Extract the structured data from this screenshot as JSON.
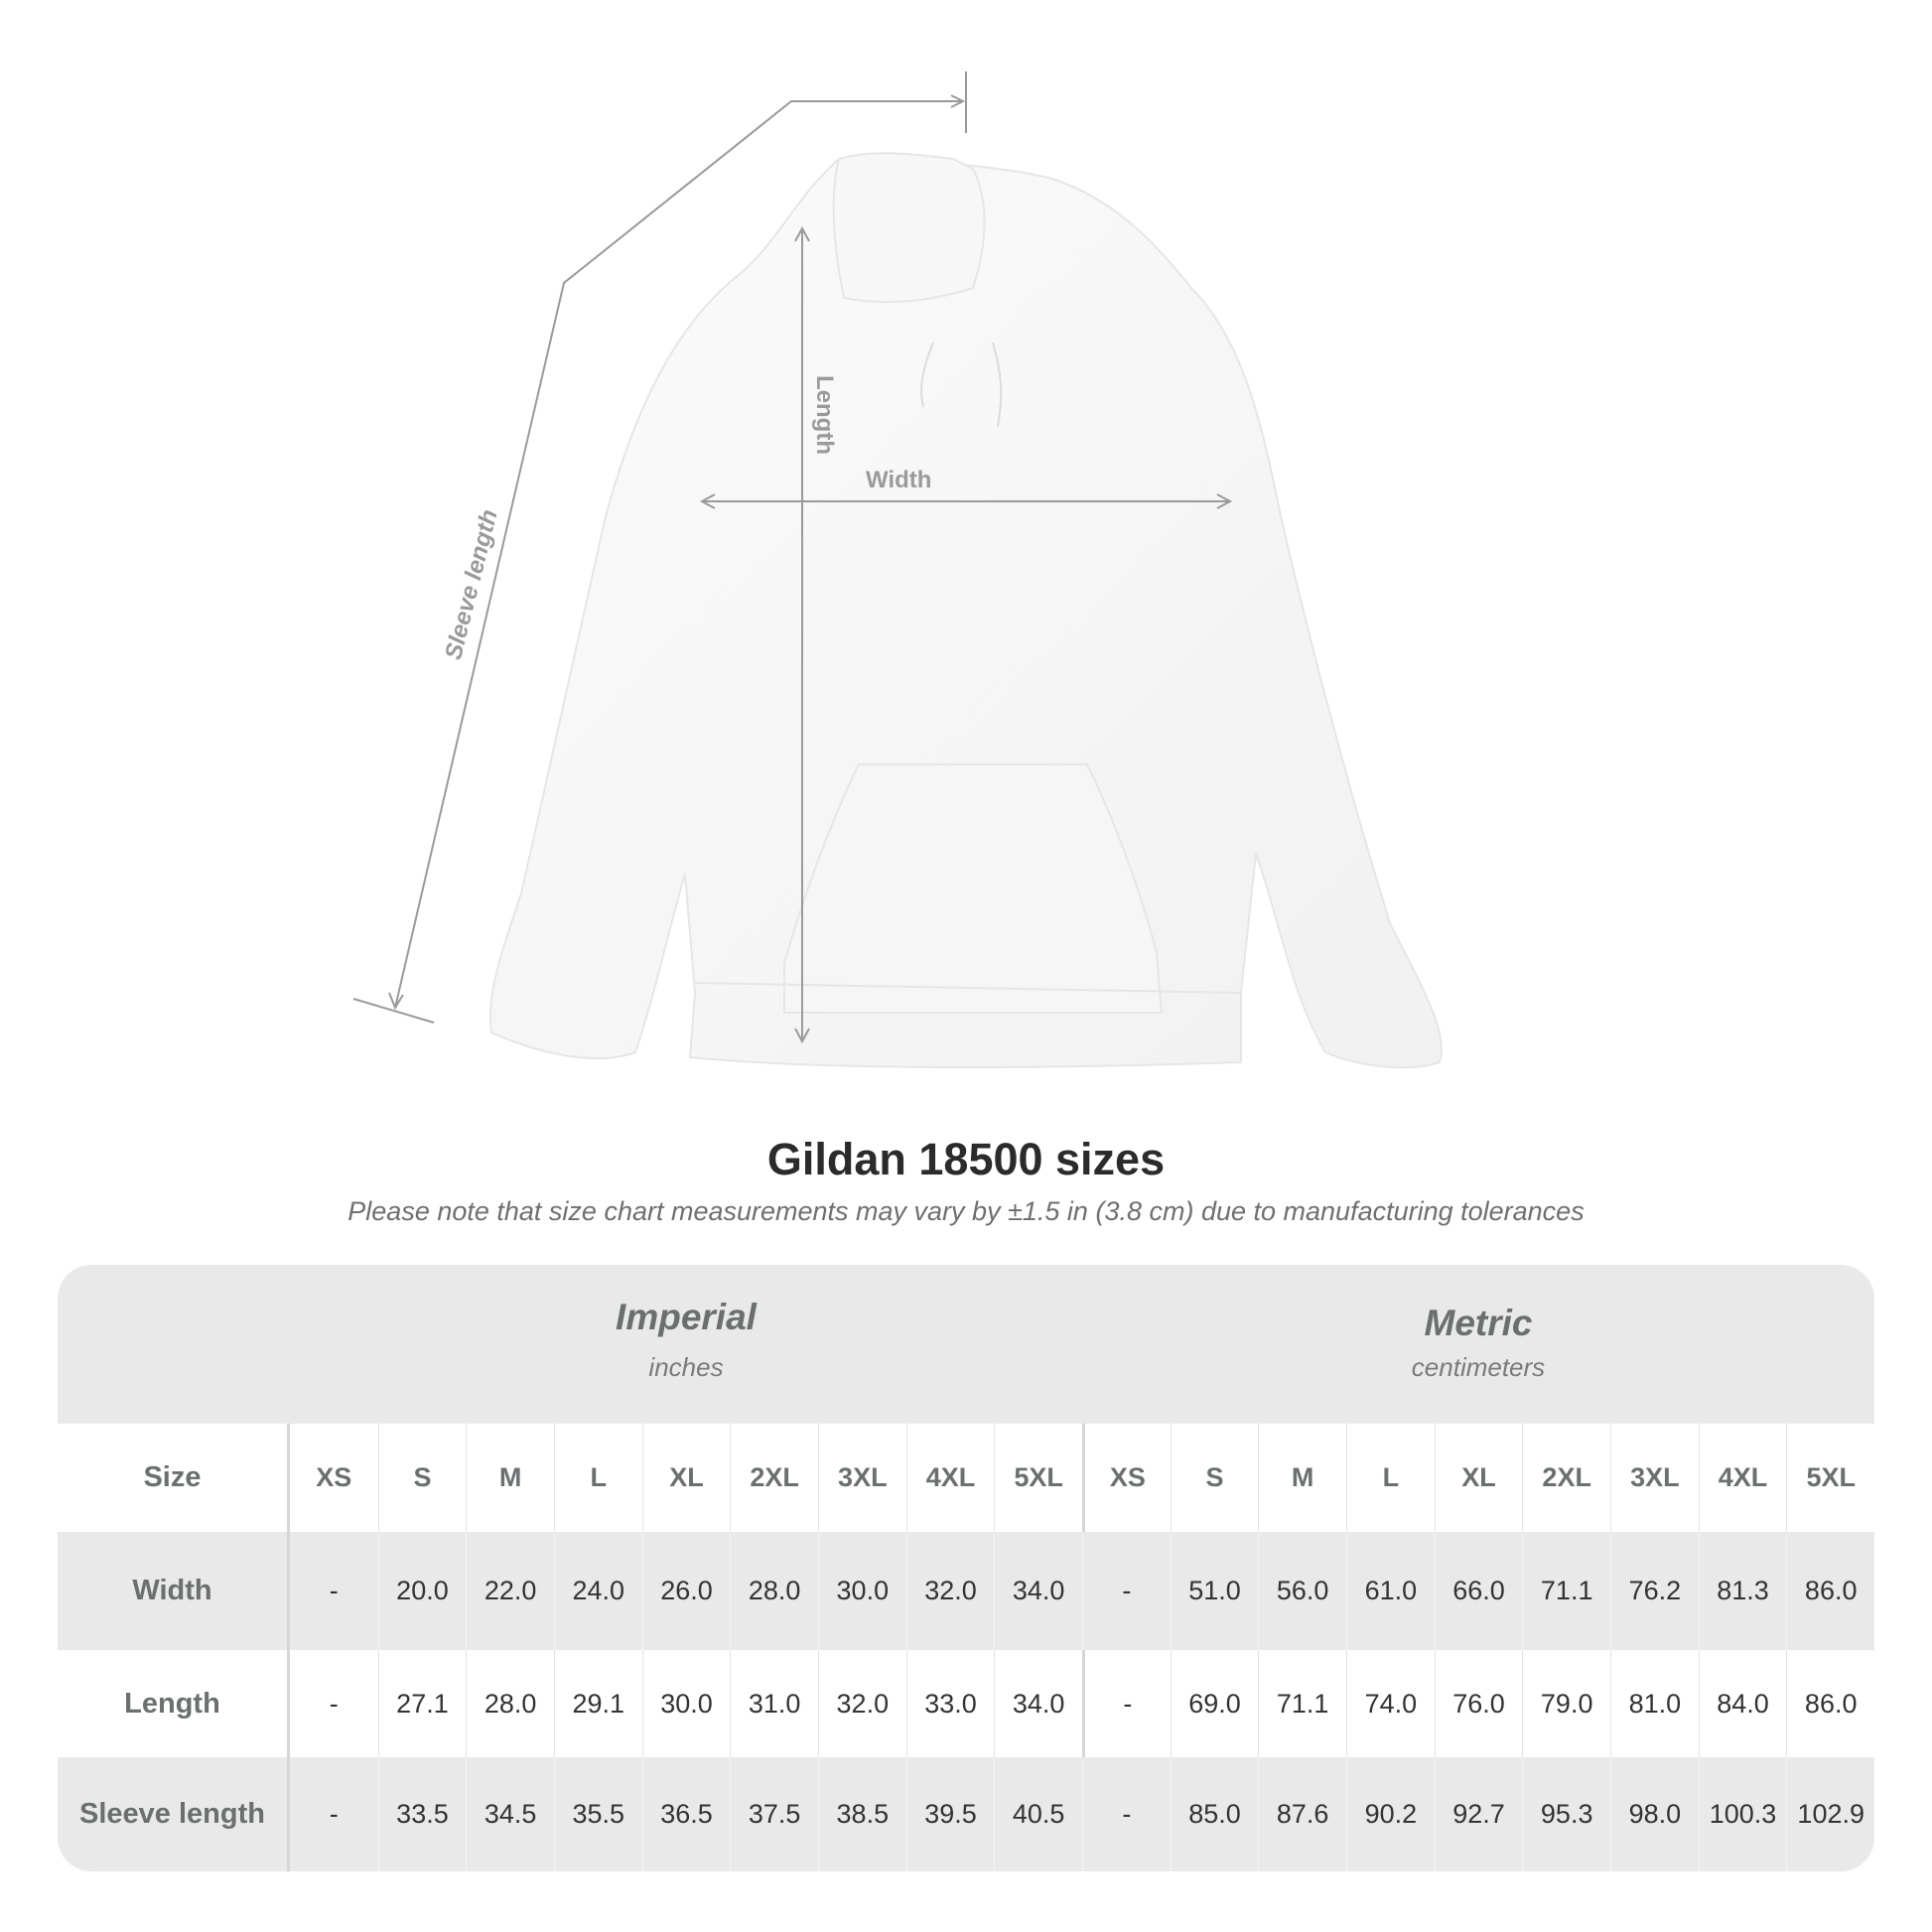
{
  "diagram": {
    "labels": {
      "length": "Length",
      "width": "Width",
      "sleeve": "Sleeve length"
    }
  },
  "title": "Gildan 18500 sizes",
  "note": "Please note that size chart measurements may vary by ±1.5 in (3.8 cm) due to manufacturing tolerances",
  "table": {
    "imperial": {
      "name": "Imperial",
      "unit": "inches"
    },
    "metric": {
      "name": "Metric",
      "unit": "centimeters"
    },
    "size_label": "Size",
    "sizes": [
      "XS",
      "S",
      "M",
      "L",
      "XL",
      "2XL",
      "3XL",
      "4XL",
      "5XL",
      "XS",
      "S",
      "M",
      "L",
      "XL",
      "2XL",
      "3XL",
      "4XL",
      "5XL"
    ],
    "rows": [
      {
        "label": "Width",
        "values": [
          "-",
          "20.0",
          "22.0",
          "24.0",
          "26.0",
          "28.0",
          "30.0",
          "32.0",
          "34.0",
          "-",
          "51.0",
          "56.0",
          "61.0",
          "66.0",
          "71.1",
          "76.2",
          "81.3",
          "86.0"
        ]
      },
      {
        "label": "Length",
        "values": [
          "-",
          "27.1",
          "28.0",
          "29.1",
          "30.0",
          "31.0",
          "32.0",
          "33.0",
          "34.0",
          "-",
          "69.0",
          "71.1",
          "74.0",
          "76.0",
          "79.0",
          "81.0",
          "84.0",
          "86.0"
        ]
      },
      {
        "label": "Sleeve length",
        "values": [
          "-",
          "33.5",
          "34.5",
          "35.5",
          "36.5",
          "37.5",
          "38.5",
          "39.5",
          "40.5",
          "-",
          "85.0",
          "87.6",
          "90.2",
          "92.7",
          "95.3",
          "98.0",
          "100.3",
          "102.9"
        ]
      }
    ]
  },
  "colors": {
    "table_bg": "#e9e9e9",
    "label_text": "#6b6f70",
    "annotation": "#9a9a9a"
  }
}
